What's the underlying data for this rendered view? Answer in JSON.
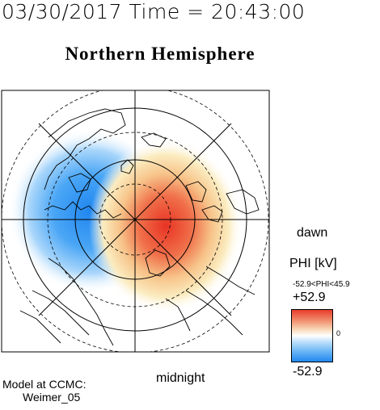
{
  "header": {
    "timestamp": "03/30/2017 Time = 20:43:00",
    "title": "Northern Hemisphere"
  },
  "map": {
    "orientation_labels": {
      "right": "dawn",
      "bottom": "midnight"
    },
    "potential_pattern": {
      "negative_cell": "dusk side (left), minimum -52.9 kV",
      "positive_cell": "dawn side (right), maximum 45.9 kV"
    },
    "colors": {
      "negative": "#2f8cf0",
      "positive": "#e8392a",
      "neutral": "#ffffff",
      "mid_positive": "#f6e0a0"
    }
  },
  "legend": {
    "title": "PHI [kV]",
    "range_text": "-52.9<PHI<45.9",
    "max_label": "+52.9",
    "min_label": "-52.9",
    "zero_label": "0"
  },
  "credit": {
    "line1": "Model at CCMC:",
    "line2": "Weimer_05"
  }
}
